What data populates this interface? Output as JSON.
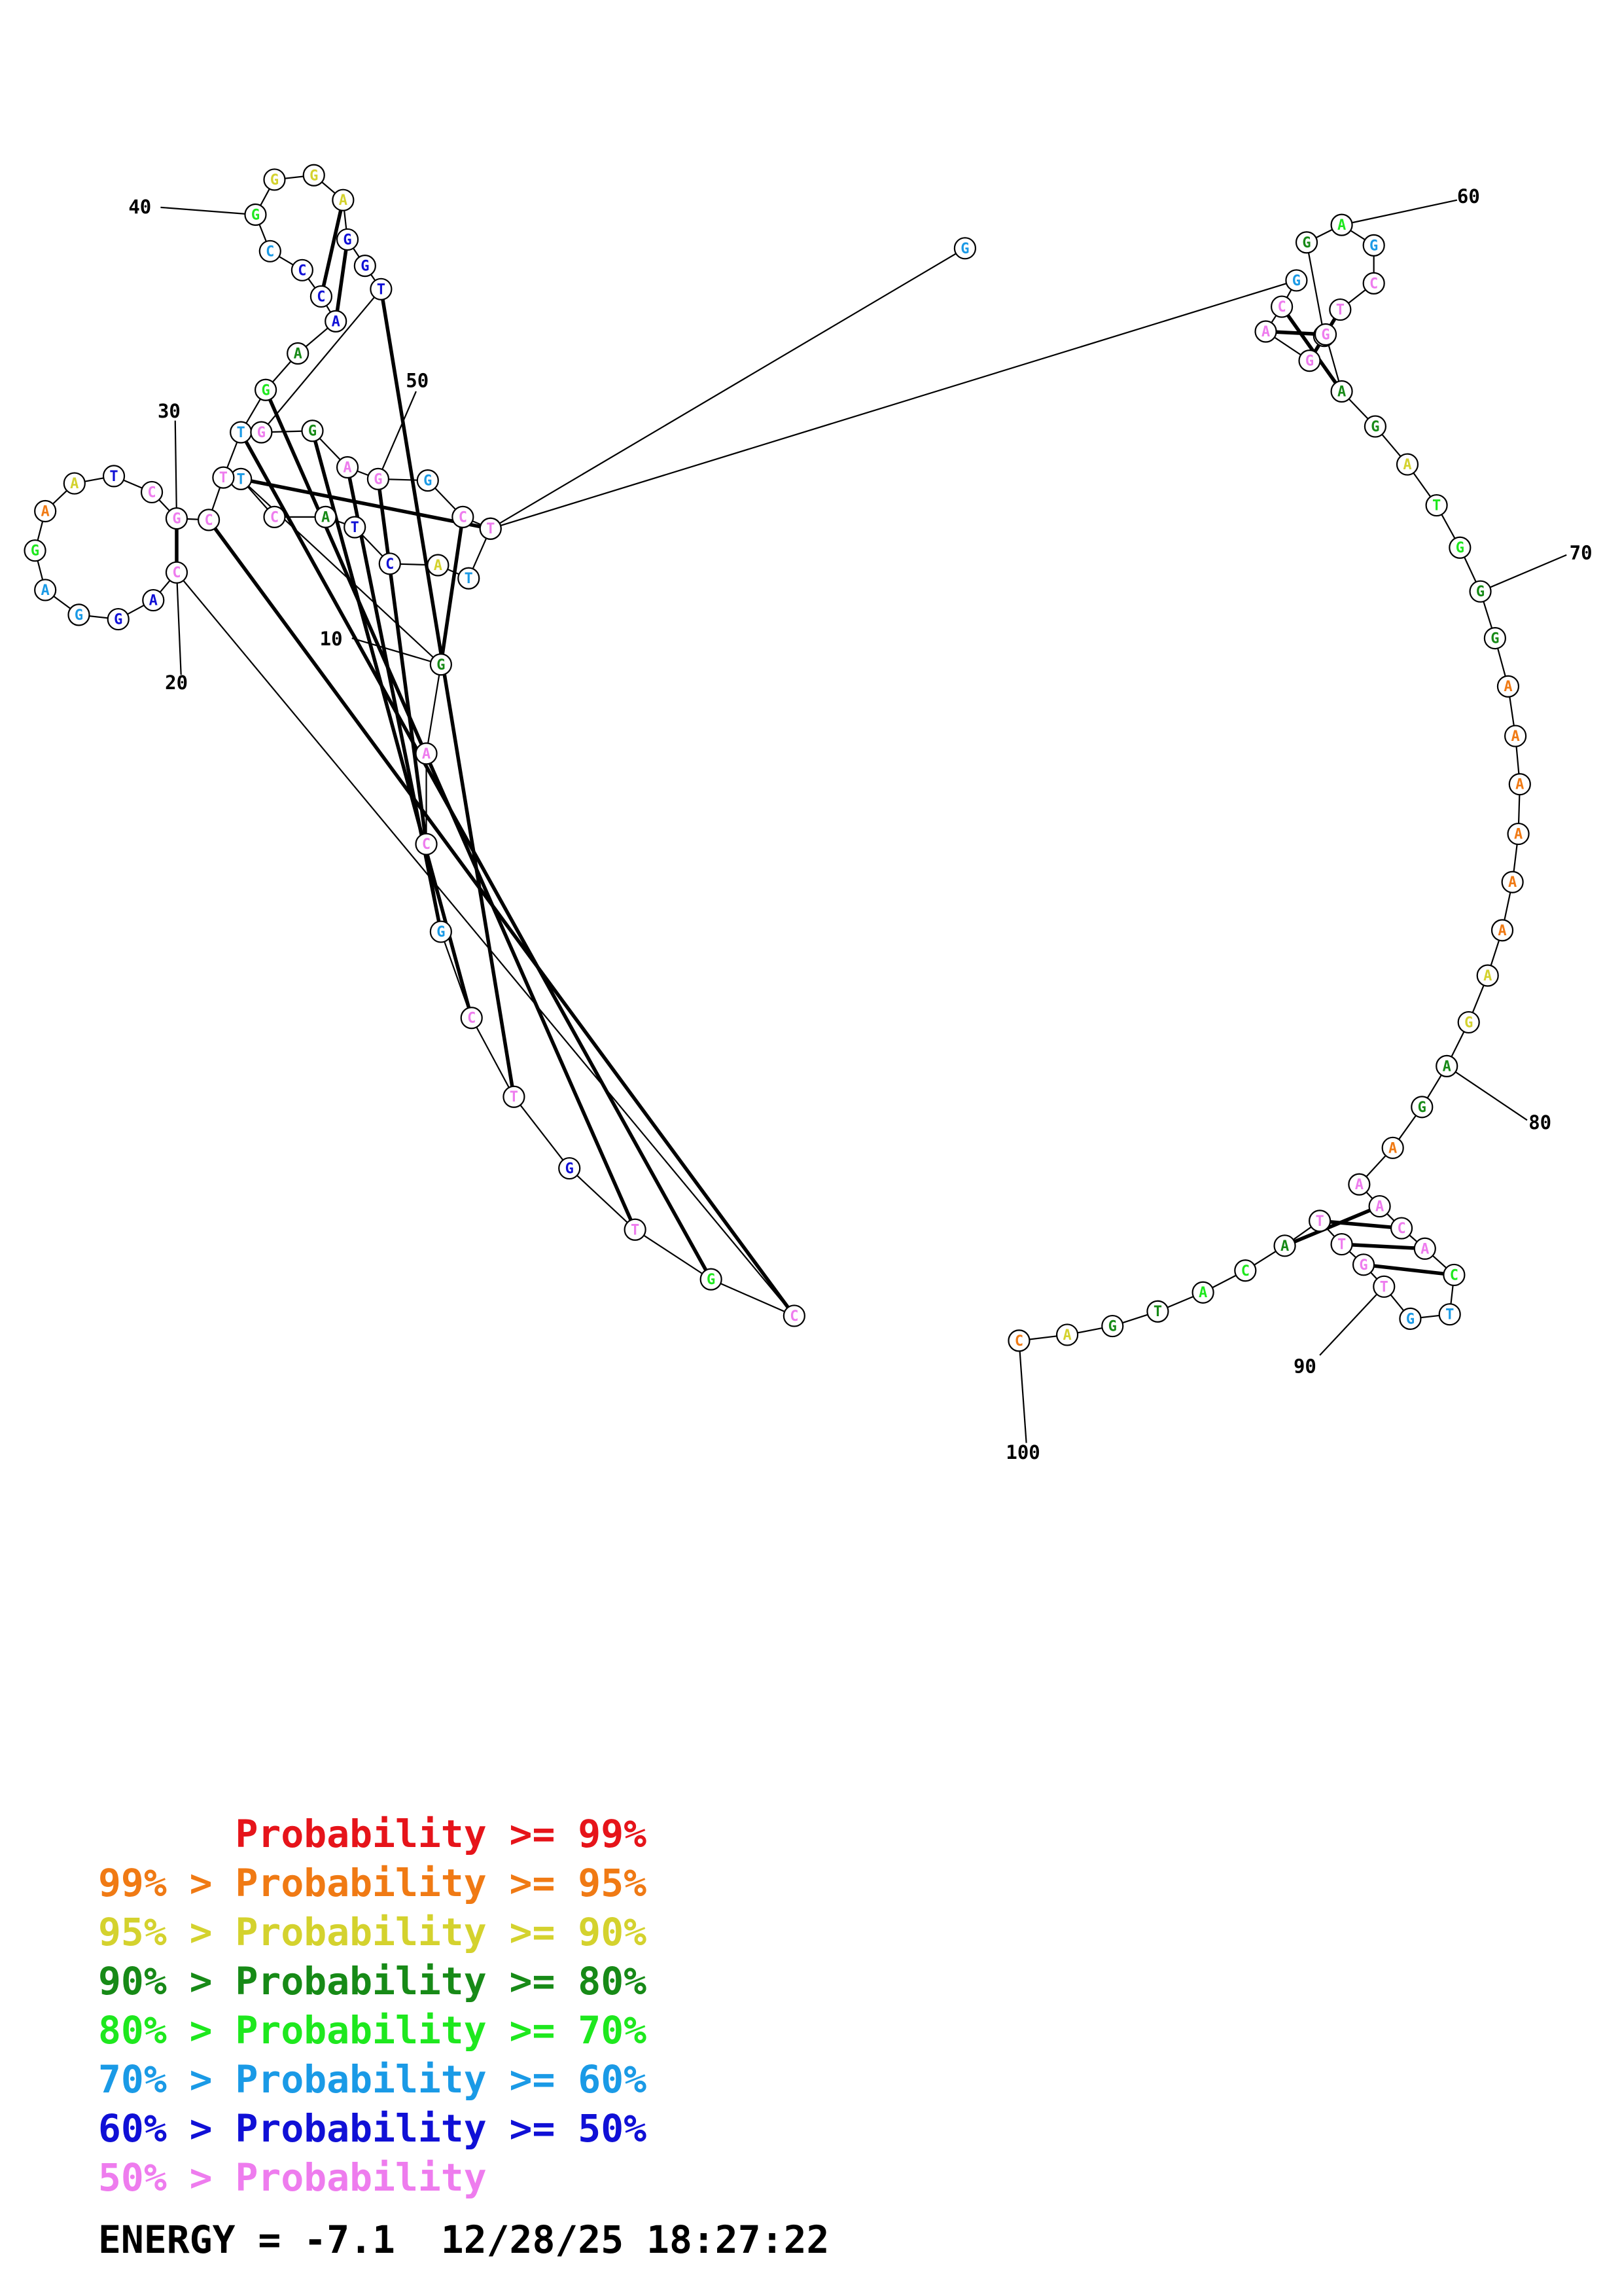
{
  "colors": {
    "p99": "#e6141a",
    "p95": "#f07a14",
    "p90": "#d4d22e",
    "p80": "#178a17",
    "p70": "#1ee81e",
    "p60": "#1a9ae6",
    "p50": "#1010d6",
    "plow": "#ee7cee"
  },
  "nucleotides": [
    {
      "n": 1,
      "b": "G",
      "c": "p60"
    },
    {
      "n": 2,
      "b": "C",
      "c": "p60"
    },
    {
      "n": 3,
      "b": "T",
      "c": "p60"
    },
    {
      "n": 4,
      "b": "A",
      "c": "p90"
    },
    {
      "n": 5,
      "b": "C",
      "c": "p50"
    },
    {
      "n": 6,
      "b": "T",
      "c": "p50"
    },
    {
      "n": 7,
      "b": "A",
      "c": "p80"
    },
    {
      "n": 8,
      "b": "C",
      "c": "plow"
    },
    {
      "n": 9,
      "b": "T",
      "c": "p60"
    },
    {
      "n": 10,
      "b": "G",
      "c": "p80"
    },
    {
      "n": 11,
      "b": "A",
      "c": "plow"
    },
    {
      "n": 12,
      "b": "C",
      "c": "plow"
    },
    {
      "n": 13,
      "b": "G",
      "c": "p60"
    },
    {
      "n": 14,
      "b": "C",
      "c": "plow"
    },
    {
      "n": 15,
      "b": "T",
      "c": "plow"
    },
    {
      "n": 16,
      "b": "G",
      "c": "p50"
    },
    {
      "n": 17,
      "b": "T",
      "c": "plow"
    },
    {
      "n": 18,
      "b": "G",
      "c": "p70"
    },
    {
      "n": 19,
      "b": "C",
      "c": "plow"
    },
    {
      "n": 20,
      "b": "C",
      "c": "plow"
    },
    {
      "n": 21,
      "b": "A",
      "c": "p50"
    },
    {
      "n": 22,
      "b": "G",
      "c": "p50"
    },
    {
      "n": 23,
      "b": "G",
      "c": "p60"
    },
    {
      "n": 24,
      "b": "A",
      "c": "p60"
    },
    {
      "n": 25,
      "b": "G",
      "c": "p70"
    },
    {
      "n": 26,
      "b": "A",
      "c": "p95"
    },
    {
      "n": 27,
      "b": "A",
      "c": "p90"
    },
    {
      "n": 28,
      "b": "T",
      "c": "p50"
    },
    {
      "n": 29,
      "b": "C",
      "c": "plow"
    },
    {
      "n": 30,
      "b": "G",
      "c": "plow"
    },
    {
      "n": 31,
      "b": "C",
      "c": "plow"
    },
    {
      "n": 32,
      "b": "T",
      "c": "plow"
    },
    {
      "n": 33,
      "b": "T",
      "c": "p60"
    },
    {
      "n": 34,
      "b": "G",
      "c": "p70"
    },
    {
      "n": 35,
      "b": "A",
      "c": "p80"
    },
    {
      "n": 36,
      "b": "A",
      "c": "p50"
    },
    {
      "n": 37,
      "b": "C",
      "c": "p50"
    },
    {
      "n": 38,
      "b": "C",
      "c": "p50"
    },
    {
      "n": 39,
      "b": "C",
      "c": "p60"
    },
    {
      "n": 40,
      "b": "G",
      "c": "p70"
    },
    {
      "n": 41,
      "b": "G",
      "c": "p90"
    },
    {
      "n": 42,
      "b": "G",
      "c": "p90"
    },
    {
      "n": 43,
      "b": "A",
      "c": "p90"
    },
    {
      "n": 44,
      "b": "G",
      "c": "p50"
    },
    {
      "n": 45,
      "b": "G",
      "c": "p50"
    },
    {
      "n": 46,
      "b": "T",
      "c": "p50"
    },
    {
      "n": 47,
      "b": "G",
      "c": "plow"
    },
    {
      "n": 48,
      "b": "G",
      "c": "p80"
    },
    {
      "n": 49,
      "b": "A",
      "c": "plow"
    },
    {
      "n": 50,
      "b": "G",
      "c": "plow"
    },
    {
      "n": 51,
      "b": "G",
      "c": "p60"
    },
    {
      "n": 52,
      "b": "C",
      "c": "plow"
    },
    {
      "n": 53,
      "b": "T",
      "c": "plow"
    },
    {
      "n": 54,
      "b": "G",
      "c": "p60"
    },
    {
      "n": 55,
      "b": "C",
      "c": "plow"
    },
    {
      "n": 56,
      "b": "A",
      "c": "plow"
    },
    {
      "n": 57,
      "b": "G",
      "c": "plow"
    },
    {
      "n": 58,
      "b": "T",
      "c": "p70"
    },
    {
      "n": 59,
      "b": "G",
      "c": "p80"
    },
    {
      "n": 60,
      "b": "A",
      "c": "p70"
    },
    {
      "n": 61,
      "b": "G",
      "c": "p60"
    },
    {
      "n": 62,
      "b": "C",
      "c": "plow"
    },
    {
      "n": 63,
      "b": "T",
      "c": "plow"
    },
    {
      "n": 64,
      "b": "G",
      "c": "plow"
    },
    {
      "n": 65,
      "b": "A",
      "c": "p80"
    },
    {
      "n": 66,
      "b": "G",
      "c": "p80"
    },
    {
      "n": 67,
      "b": "A",
      "c": "p90"
    },
    {
      "n": 68,
      "b": "T",
      "c": "p70"
    },
    {
      "n": 69,
      "b": "G",
      "c": "p70"
    },
    {
      "n": 70,
      "b": "G",
      "c": "p80"
    },
    {
      "n": 71,
      "b": "G",
      "c": "p80"
    },
    {
      "n": 72,
      "b": "A",
      "c": "p95"
    },
    {
      "n": 73,
      "b": "A",
      "c": "p95"
    },
    {
      "n": 74,
      "b": "A",
      "c": "p95"
    },
    {
      "n": 75,
      "b": "A",
      "c": "p95"
    },
    {
      "n": 76,
      "b": "A",
      "c": "p95"
    },
    {
      "n": 77,
      "b": "A",
      "c": "p95"
    },
    {
      "n": 78,
      "b": "A",
      "c": "p90"
    },
    {
      "n": 79,
      "b": "G",
      "c": "p90"
    },
    {
      "n": 80,
      "b": "A",
      "c": "p80"
    },
    {
      "n": 81,
      "b": "G",
      "c": "p80"
    },
    {
      "n": 82,
      "b": "A",
      "c": "p95"
    },
    {
      "n": 83,
      "b": "A",
      "c": "plow"
    },
    {
      "n": 84,
      "b": "A",
      "c": "plow"
    },
    {
      "n": 85,
      "b": "C",
      "c": "plow"
    },
    {
      "n": 86,
      "b": "A",
      "c": "plow"
    },
    {
      "n": 87,
      "b": "C",
      "c": "p70"
    },
    {
      "n": 88,
      "b": "T",
      "c": "p60"
    },
    {
      "n": 89,
      "b": "G",
      "c": "p60"
    },
    {
      "n": 90,
      "b": "T",
      "c": "plow"
    },
    {
      "n": 91,
      "b": "G",
      "c": "plow"
    },
    {
      "n": 92,
      "b": "T",
      "c": "plow"
    },
    {
      "n": 93,
      "b": "T",
      "c": "plow"
    },
    {
      "n": 94,
      "b": "A",
      "c": "p80"
    },
    {
      "n": 95,
      "b": "C",
      "c": "p70"
    },
    {
      "n": 96,
      "b": "A",
      "c": "p70"
    },
    {
      "n": 97,
      "b": "T",
      "c": "p80"
    },
    {
      "n": 98,
      "b": "G",
      "c": "p80"
    },
    {
      "n": 99,
      "b": "A",
      "c": "p90"
    },
    {
      "n": 100,
      "b": "C",
      "c": "p95"
    }
  ],
  "pairs": [
    [
      9,
      53
    ],
    [
      10,
      52
    ],
    [
      12,
      50
    ],
    [
      13,
      49
    ],
    [
      14,
      48
    ],
    [
      15,
      46
    ],
    [
      17,
      34
    ],
    [
      18,
      33
    ],
    [
      19,
      31
    ],
    [
      20,
      30
    ],
    [
      36,
      44
    ],
    [
      37,
      43
    ],
    [
      55,
      65
    ],
    [
      56,
      64
    ],
    [
      57,
      63
    ],
    [
      84,
      94
    ],
    [
      85,
      93
    ],
    [
      86,
      92
    ],
    [
      87,
      91
    ]
  ],
  "tick_labels": [
    {
      "n": 10,
      "label": "10"
    },
    {
      "n": 20,
      "label": "20"
    },
    {
      "n": 30,
      "label": "30"
    },
    {
      "n": 40,
      "label": "40"
    },
    {
      "n": 50,
      "label": "50"
    },
    {
      "n": 60,
      "label": "60"
    },
    {
      "n": 70,
      "label": "70"
    },
    {
      "n": 80,
      "label": "80"
    },
    {
      "n": 90,
      "label": "90"
    },
    {
      "n": 100,
      "label": "100"
    }
  ],
  "legend": [
    {
      "prefix": "      ",
      "rest": "Probability >= 99%",
      "c": "p99"
    },
    {
      "prefix": "99% > ",
      "rest": "Probability >= 95%",
      "c": "p95"
    },
    {
      "prefix": "95% > ",
      "rest": "Probability >= 90%",
      "c": "p90"
    },
    {
      "prefix": "90% > ",
      "rest": "Probability >= 80%",
      "c": "p80"
    },
    {
      "prefix": "80% > ",
      "rest": "Probability >= 70%",
      "c": "p70"
    },
    {
      "prefix": "70% > ",
      "rest": "Probability >= 60%",
      "c": "p60"
    },
    {
      "prefix": "60% > ",
      "rest": "Probability >= 50%",
      "c": "p50"
    },
    {
      "prefix": "50% > ",
      "rest": "Probability",
      "c": "plow"
    }
  ],
  "energy_line": "ENERGY = -7.1  12/28/25 18:27:22"
}
